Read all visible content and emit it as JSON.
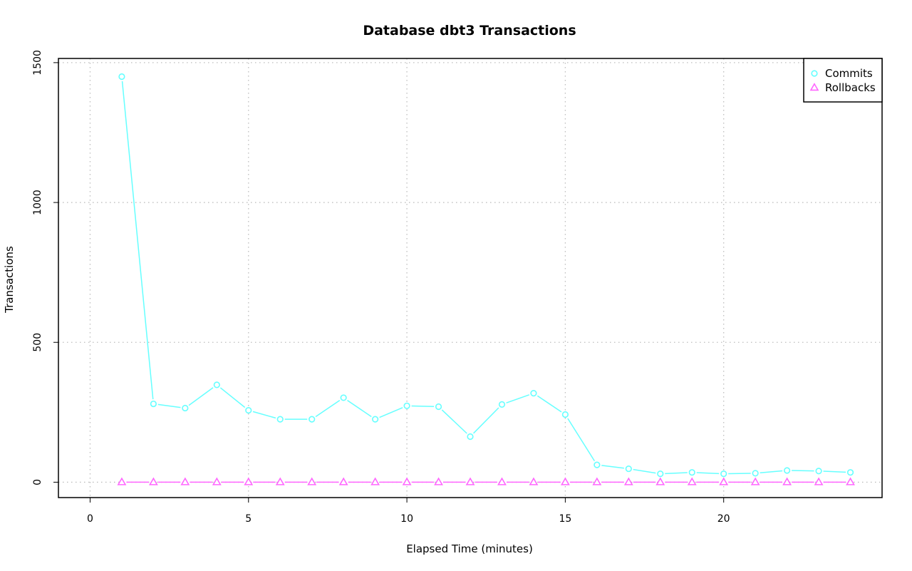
{
  "chart_data": {
    "type": "line",
    "title": "Database dbt3 Transactions",
    "xlabel": "Elapsed Time (minutes)",
    "ylabel": "Transactions",
    "xlim": [
      -1,
      25
    ],
    "ylim": [
      -55,
      1515
    ],
    "x_ticks": [
      0,
      5,
      10,
      15,
      20
    ],
    "y_ticks": [
      0,
      500,
      1000,
      1500
    ],
    "grid": true,
    "legend_position": "top-right",
    "x": [
      1,
      2,
      3,
      4,
      5,
      6,
      7,
      8,
      9,
      10,
      11,
      12,
      13,
      14,
      15,
      16,
      17,
      18,
      19,
      20,
      21,
      22,
      23,
      24
    ],
    "series": [
      {
        "name": "Commits",
        "marker": "circle",
        "color": "#66ffff",
        "values": [
          1450,
          280,
          265,
          348,
          257,
          225,
          225,
          302,
          225,
          273,
          270,
          163,
          278,
          318,
          242,
          62,
          48,
          30,
          35,
          30,
          32,
          42,
          40,
          35
        ]
      },
      {
        "name": "Rollbacks",
        "marker": "triangle",
        "color": "#ff66ff",
        "values": [
          0,
          0,
          0,
          0,
          0,
          0,
          0,
          0,
          0,
          0,
          0,
          0,
          0,
          0,
          0,
          0,
          0,
          0,
          0,
          0,
          0,
          0,
          0,
          0
        ]
      }
    ]
  }
}
